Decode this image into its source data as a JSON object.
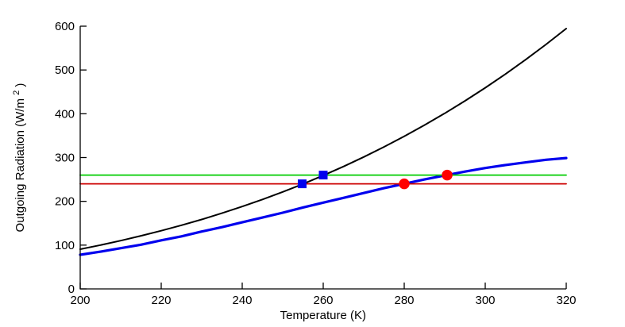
{
  "chart_data": {
    "type": "line",
    "title": "",
    "xlabel": "Temperature (K)",
    "ylabel": "Outgoing Radiation (W/m²)",
    "ylabel_parts": [
      "Outgoing Radiation (W/m",
      "2",
      ")"
    ],
    "xlim": [
      200,
      320
    ],
    "ylim": [
      0,
      600
    ],
    "xticks": [
      200,
      220,
      240,
      260,
      280,
      300,
      320
    ],
    "yticks": [
      0,
      100,
      200,
      300,
      400,
      500,
      600
    ],
    "grid": false,
    "legend_position": "none",
    "axis_color": "#000000",
    "series": [
      {
        "name": "blackbody-radiation-curve",
        "color": "#000000",
        "width": 2,
        "x": [
          200,
          205,
          210,
          215,
          220,
          225,
          230,
          235,
          240,
          245,
          250,
          255,
          260,
          265,
          270,
          275,
          280,
          285,
          290,
          295,
          300,
          305,
          310,
          315,
          320
        ],
        "y": [
          90.7,
          100.1,
          110.3,
          121.2,
          132.8,
          145.3,
          158.7,
          172.9,
          188.1,
          204.3,
          221.5,
          239.7,
          259.1,
          279.6,
          301.3,
          324.3,
          348.5,
          374.1,
          401.0,
          429.4,
          459.3,
          490.7,
          523.6,
          558.3,
          594.5
        ]
      },
      {
        "name": "greenhouse-olr-curve",
        "color": "#0000EE",
        "width": 3.2,
        "x": [
          200,
          205,
          210,
          215,
          220,
          225,
          230,
          235,
          240,
          245,
          250,
          255,
          260,
          265,
          270,
          275,
          280,
          285,
          290,
          295,
          300,
          305,
          310,
          315,
          320
        ],
        "y": [
          78,
          85,
          93,
          101,
          111,
          120,
          131,
          141,
          152,
          163,
          174,
          186,
          197,
          208,
          219,
          230,
          240,
          250,
          259,
          268,
          276,
          283,
          289,
          295,
          299
        ]
      },
      {
        "name": "absorbed-solar-upper-line",
        "color": "#00CC00",
        "width": 1.8,
        "x": [
          200,
          320
        ],
        "y": [
          260,
          260
        ]
      },
      {
        "name": "absorbed-solar-lower-line",
        "color": "#CC0000",
        "width": 1.8,
        "x": [
          200,
          320
        ],
        "y": [
          240,
          240
        ]
      }
    ],
    "markers": [
      {
        "name": "blue-square-equilibrium-1",
        "shape": "square",
        "color": "#0000EE",
        "x": 254.8,
        "y": 240,
        "size": 11
      },
      {
        "name": "blue-square-equilibrium-2",
        "shape": "square",
        "color": "#0000EE",
        "x": 260.0,
        "y": 260,
        "size": 11
      },
      {
        "name": "red-circle-equilibrium-1",
        "shape": "circle",
        "color": "#FF0000",
        "x": 280.0,
        "y": 240,
        "size": 13.5
      },
      {
        "name": "red-circle-equilibrium-2",
        "shape": "circle",
        "color": "#FF0000",
        "x": 290.6,
        "y": 260,
        "size": 13.5
      }
    ]
  }
}
